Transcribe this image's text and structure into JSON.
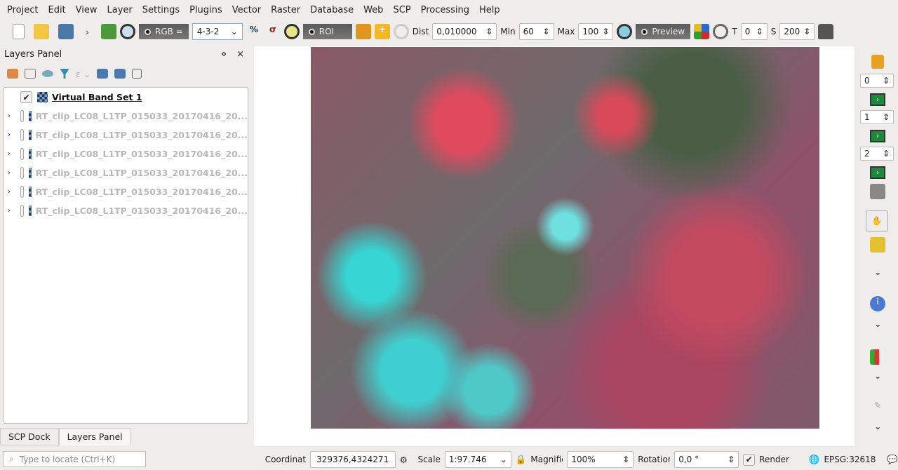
{
  "menu": [
    "Project",
    "Edit",
    "View",
    "Layer",
    "Settings",
    "Plugins",
    "Vector",
    "Raster",
    "Database",
    "Web",
    "SCP",
    "Processing",
    "Help"
  ],
  "toolbar": {
    "rgb_label": "RGB =",
    "rgb_value": "4-3-2",
    "roi_label": "ROI",
    "dist_label": "Dist",
    "dist_value": "0,010000",
    "min_label": "Min",
    "min_value": "60",
    "max_label": "Max",
    "max_value": "100",
    "preview_label": "Preview",
    "t_label": "T",
    "t_value": "0",
    "s_label": "S",
    "s_value": "200"
  },
  "layers_panel": {
    "title": "Layers Panel",
    "layers": [
      {
        "name": "Virtual Band Set 1",
        "checked": true
      },
      {
        "name": "RT_clip_LC08_L1TP_015033_20170416_20...",
        "checked": false
      },
      {
        "name": "RT_clip_LC08_L1TP_015033_20170416_20...",
        "checked": false
      },
      {
        "name": "RT_clip_LC08_L1TP_015033_20170416_20...",
        "checked": false
      },
      {
        "name": "RT_clip_LC08_L1TP_015033_20170416_20...",
        "checked": false
      },
      {
        "name": "RT_clip_LC08_L1TP_015033_20170416_20...",
        "checked": false
      },
      {
        "name": "RT_clip_LC08_L1TP_015033_20170416_20...",
        "checked": false
      }
    ]
  },
  "tabs": [
    "SCP Dock",
    "Layers Panel"
  ],
  "right_toolbar": {
    "spin": [
      "0",
      "1",
      "2"
    ]
  },
  "status": {
    "locate_placeholder": "Type to locate (Ctrl+K)",
    "coordinate_label": "Coordinate",
    "coordinate_value": "329376,4324271",
    "scale_label": "Scale",
    "scale_value": "1:97.746",
    "magnifier_label": "Magnifier",
    "magnifier_value": "100%",
    "rotation_label": "Rotation",
    "rotation_value": "0,0 °",
    "render_label": "Render",
    "crs": "EPSG:32618"
  }
}
